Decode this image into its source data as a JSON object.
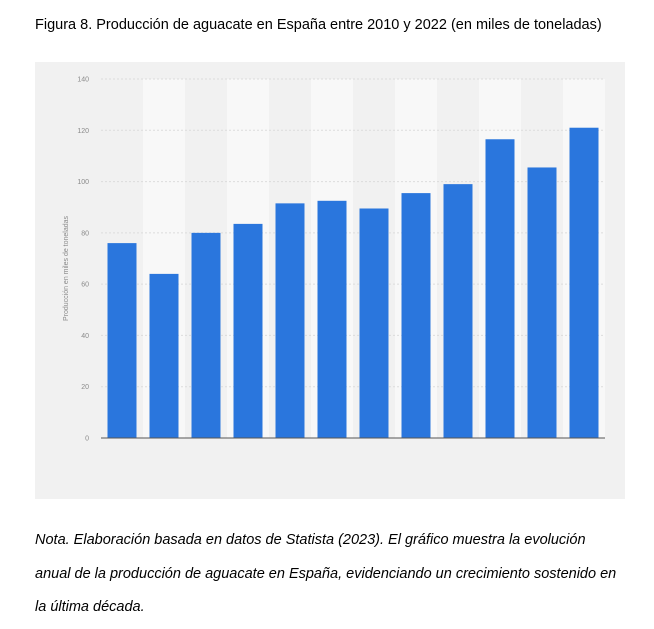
{
  "figure": {
    "caption": "Figura 8. Producción de aguacate en España entre 2010 y 2022 (en miles de toneladas)"
  },
  "note": {
    "lines": [
      "Nota. Elaboración basada en datos de Statista (2023). El gráfico muestra la evolución",
      "anual de la producción de aguacate en España, evidenciando un crecimiento sostenido en",
      "la última década."
    ]
  },
  "colors": {
    "bar": "#2a76dd",
    "panel": "#f1f1f1",
    "band_light": "#f8f8f8",
    "grid": "#dcdcdc",
    "tick_text": "#8a8a8a"
  },
  "chart_data": {
    "type": "bar",
    "title": "",
    "xlabel": "",
    "ylabel": "Producción en miles de toneladas",
    "ylim": [
      0,
      140
    ],
    "yticks": [
      0,
      20,
      40,
      60,
      80,
      100,
      120,
      140
    ],
    "grid": true,
    "legend": "none",
    "categories": [
      "",
      "",
      "",
      "",
      "",
      "",
      "",
      "",
      "",
      "",
      "",
      ""
    ],
    "values": [
      76,
      64,
      80,
      83.5,
      91.5,
      92.5,
      89.5,
      95.5,
      99,
      116.5,
      105.5,
      121
    ]
  }
}
